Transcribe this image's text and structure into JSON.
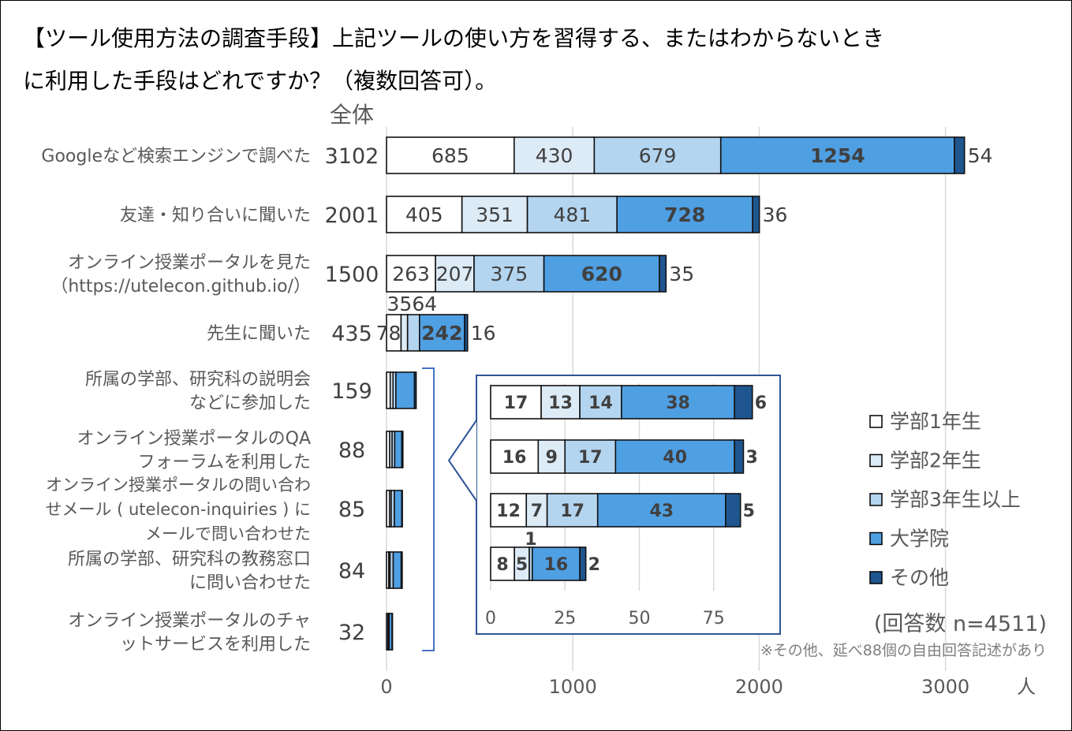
{
  "chart_data": [
    {
      "type": "bar",
      "orientation": "horizontal",
      "stacked": true,
      "title_lines": [
        "【ツール使用方法の調査手段】上記ツールの使い方を習得する、またはわからないとき",
        "に利用した手段はどれですか？（複数回答可）。"
      ],
      "total_header": "全体",
      "categories": [
        [
          "Googleなど検索エンジンで調べた"
        ],
        [
          "友達・知り合いに聞いた"
        ],
        [
          "オンライン授業ポータルを見た",
          "（https://utelecon.github.io/）"
        ],
        [
          "先生に聞いた"
        ],
        [
          "所属の学部、研究科の説明会",
          "などに参加した"
        ],
        [
          "オンライン授業ポータルのQA",
          "フォーラムを利用した"
        ],
        [
          "オンライン授業ポータルの問い合わ",
          "せメール ( utelecon-inquiries ) に",
          "メールで問い合わせた"
        ],
        [
          "所属の学部、研究科の教務窓口",
          "に問い合わせた"
        ],
        [
          "オンライン授業ポータルのチャ",
          "ットサービスを利用した"
        ]
      ],
      "totals": [
        "3102",
        "2001",
        "1500",
        "435",
        "159",
        "88",
        "85",
        "84",
        "32"
      ],
      "series": [
        {
          "name": "学部1年生",
          "color": "#ffffff",
          "values": [
            685,
            405,
            263,
            78,
            20,
            17,
            16,
            12,
            8
          ]
        },
        {
          "name": "学部2年生",
          "color": "#ddebf7",
          "values": [
            430,
            351,
            207,
            35,
            15,
            13,
            9,
            7,
            5
          ]
        },
        {
          "name": "学部3年生以上",
          "color": "#b4d5f0",
          "values": [
            679,
            481,
            375,
            64,
            15,
            14,
            17,
            17,
            1
          ]
        },
        {
          "name": "大学院",
          "color": "#4f9fe3",
          "values": [
            1254,
            728,
            620,
            242,
            100,
            38,
            40,
            43,
            16
          ]
        },
        {
          "name": "その他",
          "color": "#1f5690",
          "values": [
            54,
            36,
            35,
            16,
            9,
            6,
            3,
            5,
            2
          ]
        }
      ],
      "value_labels_shown_rows": [
        0,
        1,
        2,
        3
      ],
      "xlim": [
        0,
        3100
      ],
      "xticks": [
        "0",
        "1000",
        "2000",
        "3000"
      ],
      "xunit": "人",
      "grid": true,
      "legend_placement": "right",
      "note_n": "(回答数 n=4511)",
      "note_other": "※その他、延べ88個の自由回答記述があり"
    },
    {
      "type": "bar",
      "orientation": "horizontal",
      "stacked": true,
      "inset_of_rows": [
        5,
        6,
        7,
        8
      ],
      "series": [
        {
          "name": "学部1年生",
          "values": [
            17,
            16,
            12,
            8
          ]
        },
        {
          "name": "学部2年生",
          "values": [
            13,
            9,
            7,
            5
          ]
        },
        {
          "name": "学部3年生以上",
          "values": [
            14,
            17,
            17,
            1
          ]
        },
        {
          "name": "大学院",
          "values": [
            38,
            40,
            43,
            16
          ]
        },
        {
          "name": "その他",
          "values": [
            6,
            3,
            5,
            2
          ]
        }
      ],
      "xlim": [
        0,
        88
      ],
      "xticks": [
        "0",
        "25",
        "50",
        "75"
      ],
      "grid": true
    }
  ]
}
